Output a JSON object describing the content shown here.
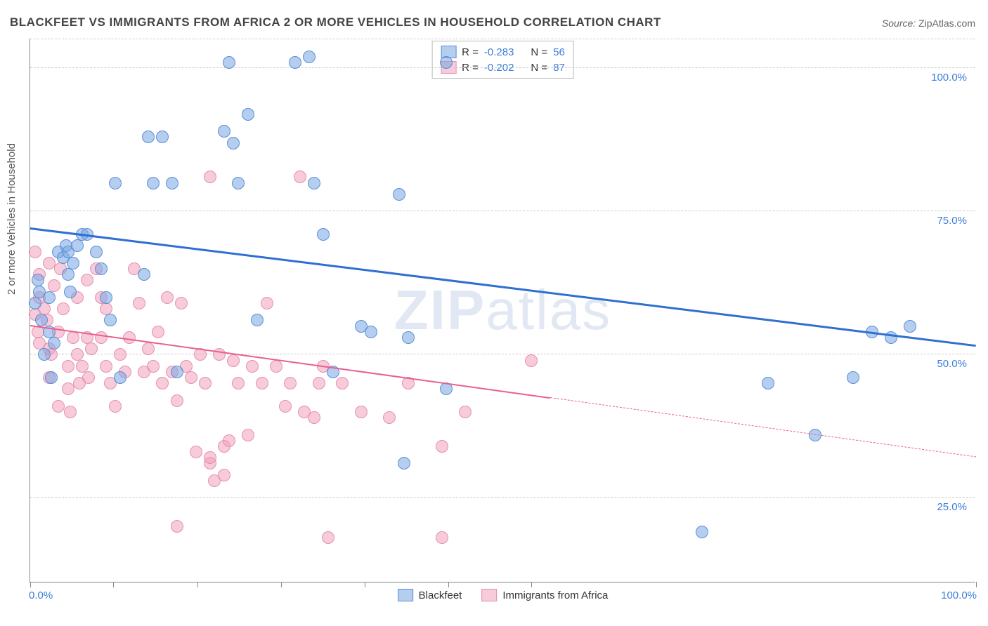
{
  "title": "BLACKFEET VS IMMIGRANTS FROM AFRICA 2 OR MORE VEHICLES IN HOUSEHOLD CORRELATION CHART",
  "source_label": "Source:",
  "source_value": "ZipAtlas.com",
  "y_axis_label": "2 or more Vehicles in Household",
  "watermark_a": "ZIP",
  "watermark_b": "atlas",
  "chart": {
    "type": "scatter",
    "background_color": "#ffffff",
    "grid_color": "#cccccc",
    "axis_color": "#888888",
    "xlim": [
      0,
      100
    ],
    "ylim": [
      10,
      105
    ],
    "x_tick_positions": [
      0,
      8.8,
      17.7,
      26.5,
      35.4,
      44.2,
      53.0,
      100
    ],
    "x_axis_labels": [
      {
        "pos": 0,
        "text": "0.0%"
      },
      {
        "pos": 100,
        "text": "100.0%"
      }
    ],
    "y_gridlines": [
      25,
      50,
      75,
      100,
      105
    ],
    "y_axis_labels": [
      {
        "pos": 25,
        "text": "25.0%"
      },
      {
        "pos": 50,
        "text": "50.0%"
      },
      {
        "pos": 75,
        "text": "75.0%"
      },
      {
        "pos": 100,
        "text": "100.0%"
      }
    ],
    "marker_radius": 9,
    "series": [
      {
        "name": "Blackfeet",
        "color_fill": "rgba(120,165,225,0.55)",
        "color_stroke": "#5a8fd6",
        "r_label": "R = ",
        "r_value": "-0.283",
        "n_label": "N = ",
        "n_value": "56",
        "trend": {
          "x1": 0,
          "y1": 72,
          "x2": 100,
          "y2": 51.5,
          "solid_until_x": 100,
          "color": "#2f6fd0",
          "width": 2.5
        },
        "points": [
          [
            0.5,
            61
          ],
          [
            0.8,
            65
          ],
          [
            1,
            63
          ],
          [
            1.2,
            58
          ],
          [
            1.5,
            52
          ],
          [
            2,
            62
          ],
          [
            2,
            56
          ],
          [
            2.2,
            48
          ],
          [
            2.5,
            54
          ],
          [
            3,
            70
          ],
          [
            3.5,
            69
          ],
          [
            3.8,
            71
          ],
          [
            4,
            70
          ],
          [
            4,
            66
          ],
          [
            4.2,
            63
          ],
          [
            4.5,
            68
          ],
          [
            5,
            71
          ],
          [
            5.5,
            73
          ],
          [
            6,
            73
          ],
          [
            7,
            70
          ],
          [
            7.5,
            67
          ],
          [
            8,
            62
          ],
          [
            8.5,
            58
          ],
          [
            9,
            82
          ],
          [
            9.5,
            48
          ],
          [
            12,
            66
          ],
          [
            12.5,
            90
          ],
          [
            13,
            82
          ],
          [
            14,
            90
          ],
          [
            15,
            82
          ],
          [
            15.5,
            49
          ],
          [
            20.5,
            91
          ],
          [
            21,
            103
          ],
          [
            21.5,
            89
          ],
          [
            22,
            82
          ],
          [
            23,
            94
          ],
          [
            24,
            58
          ],
          [
            28,
            103
          ],
          [
            29.5,
            104
          ],
          [
            30,
            82
          ],
          [
            31,
            73
          ],
          [
            32,
            49
          ],
          [
            35,
            57
          ],
          [
            36,
            56
          ],
          [
            39,
            80
          ],
          [
            39.5,
            33
          ],
          [
            40,
            55
          ],
          [
            44,
            46
          ],
          [
            44,
            103
          ],
          [
            71,
            21
          ],
          [
            78,
            47
          ],
          [
            83,
            38
          ],
          [
            87,
            48
          ],
          [
            89,
            56
          ],
          [
            91,
            55
          ],
          [
            93,
            57
          ]
        ]
      },
      {
        "name": "Immigrants from Africa",
        "color_fill": "rgba(240,160,185,0.55)",
        "color_stroke": "#e68fb0",
        "r_label": "R = ",
        "r_value": "-0.202",
        "n_label": "N = ",
        "n_value": "87",
        "trend": {
          "x1": 0,
          "y1": 55,
          "x2": 100,
          "y2": 32,
          "solid_until_x": 55,
          "color": "#e85f8f",
          "width": 2
        },
        "points": [
          [
            0.5,
            59
          ],
          [
            0.8,
            56
          ],
          [
            1,
            54
          ],
          [
            1,
            62
          ],
          [
            1.5,
            60
          ],
          [
            1.8,
            58
          ],
          [
            2,
            53
          ],
          [
            2,
            48
          ],
          [
            2.2,
            52
          ],
          [
            2.5,
            64
          ],
          [
            3,
            56
          ],
          [
            3,
            43
          ],
          [
            3.2,
            67
          ],
          [
            3.5,
            60
          ],
          [
            4,
            50
          ],
          [
            4,
            46
          ],
          [
            4.2,
            42
          ],
          [
            4.5,
            55
          ],
          [
            5,
            62
          ],
          [
            5,
            52
          ],
          [
            5.2,
            47
          ],
          [
            5.5,
            50
          ],
          [
            6,
            65
          ],
          [
            6,
            55
          ],
          [
            6.2,
            48
          ],
          [
            6.5,
            53
          ],
          [
            7,
            67
          ],
          [
            7.5,
            55
          ],
          [
            7.5,
            62
          ],
          [
            8,
            60
          ],
          [
            8,
            50
          ],
          [
            8.5,
            47
          ],
          [
            9,
            43
          ],
          [
            9.5,
            52
          ],
          [
            10,
            49
          ],
          [
            10.5,
            55
          ],
          [
            11,
            67
          ],
          [
            11.5,
            61
          ],
          [
            12,
            49
          ],
          [
            12.5,
            53
          ],
          [
            13,
            50
          ],
          [
            13.5,
            56
          ],
          [
            14,
            47
          ],
          [
            14.5,
            62
          ],
          [
            15,
            49
          ],
          [
            15.5,
            44
          ],
          [
            15.5,
            22
          ],
          [
            16,
            61
          ],
          [
            16.5,
            50
          ],
          [
            17,
            48
          ],
          [
            17.5,
            35
          ],
          [
            18,
            52
          ],
          [
            18.5,
            47
          ],
          [
            19,
            33
          ],
          [
            19,
            34
          ],
          [
            19,
            83
          ],
          [
            19.5,
            30
          ],
          [
            20,
            52
          ],
          [
            20.5,
            36
          ],
          [
            20.5,
            31
          ],
          [
            21,
            37
          ],
          [
            21.5,
            51
          ],
          [
            22,
            47
          ],
          [
            23,
            38
          ],
          [
            23.5,
            50
          ],
          [
            24.5,
            47
          ],
          [
            25,
            61
          ],
          [
            26,
            50
          ],
          [
            27,
            43
          ],
          [
            27.5,
            47
          ],
          [
            28.5,
            83
          ],
          [
            29,
            42
          ],
          [
            30,
            41
          ],
          [
            30.5,
            47
          ],
          [
            31,
            50
          ],
          [
            31.5,
            20
          ],
          [
            33,
            47
          ],
          [
            35,
            42
          ],
          [
            38,
            41
          ],
          [
            40,
            47
          ],
          [
            43.5,
            36
          ],
          [
            43.5,
            20
          ],
          [
            46,
            42
          ],
          [
            53,
            51
          ],
          [
            0.5,
            70
          ],
          [
            1,
            66
          ],
          [
            2,
            68
          ]
        ]
      }
    ]
  }
}
